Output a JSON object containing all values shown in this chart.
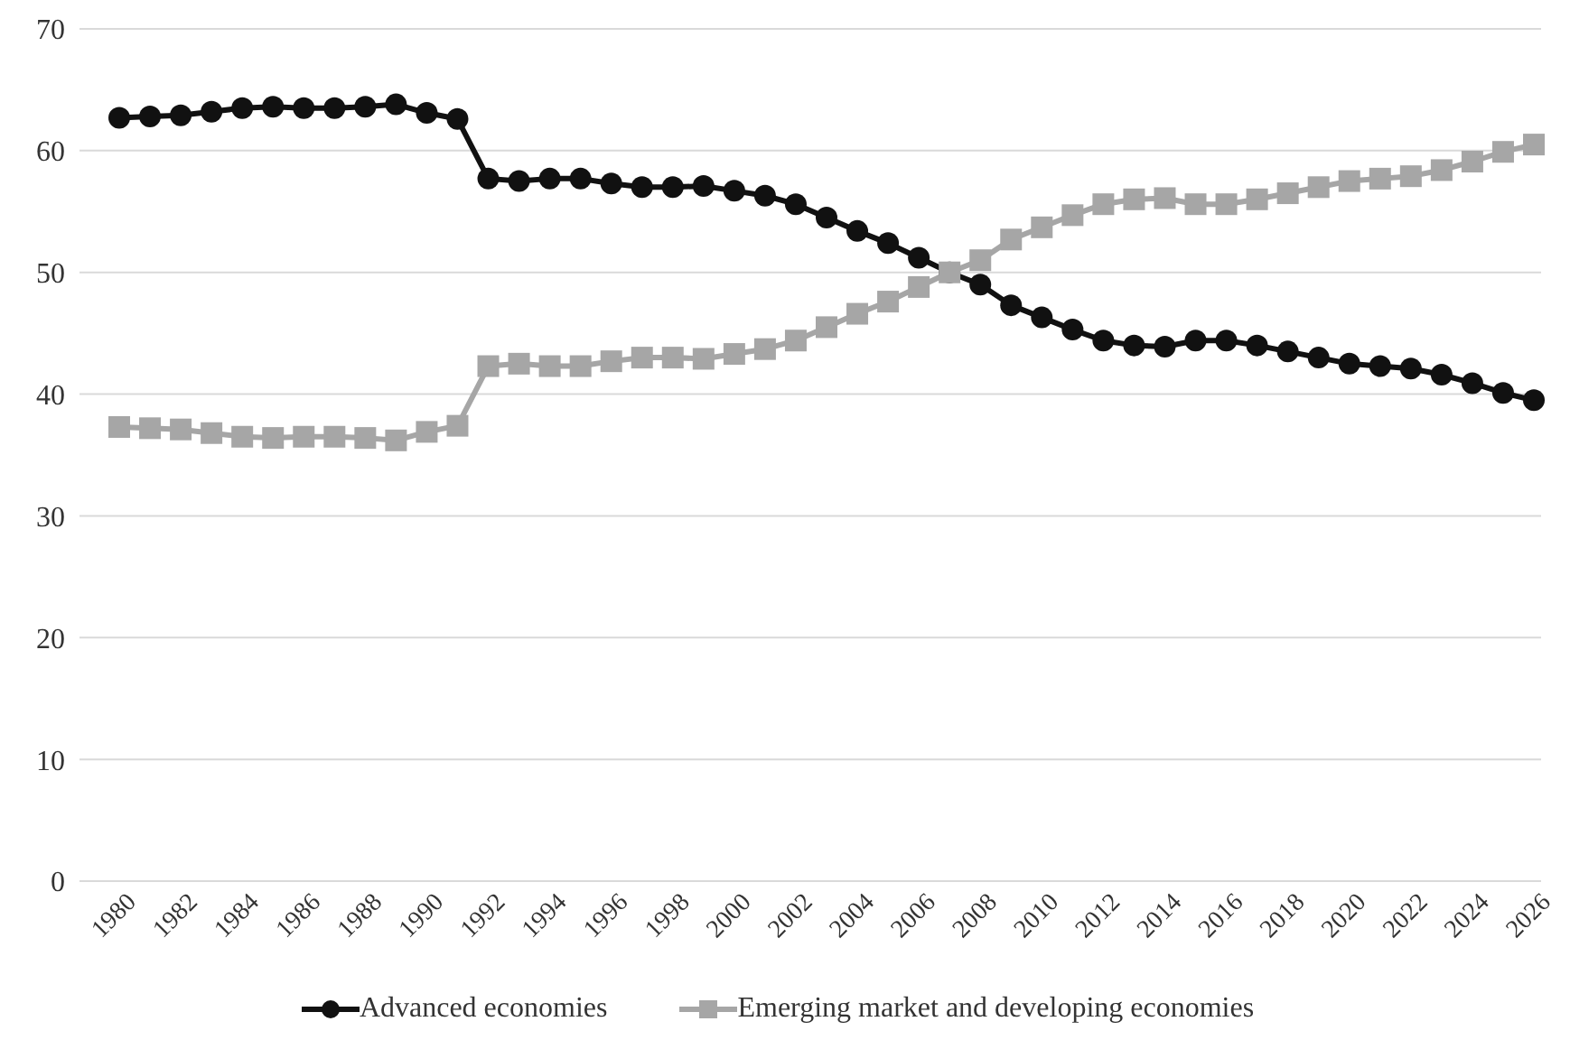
{
  "chart_data": {
    "type": "line",
    "categories": [
      "1980",
      null,
      "1982",
      null,
      "1984",
      null,
      "1986",
      null,
      "1988",
      null,
      "1990",
      null,
      "1992",
      null,
      "1994",
      null,
      "1996",
      null,
      "1998",
      null,
      "2000",
      null,
      "2002",
      null,
      "2004",
      null,
      "2006",
      null,
      "2008",
      null,
      "2010",
      null,
      "2012",
      null,
      "2014",
      null,
      "2016",
      null,
      "2018",
      null,
      "2020",
      null,
      "2022",
      null,
      "2024",
      null,
      "2026"
    ],
    "series": [
      {
        "name": "Advanced economies",
        "color": "#111111",
        "marker": "circle",
        "values": [
          62.7,
          62.8,
          62.9,
          63.2,
          63.5,
          63.6,
          63.5,
          63.5,
          63.6,
          63.8,
          63.1,
          62.6,
          57.7,
          57.5,
          57.7,
          57.7,
          57.3,
          57.0,
          57.0,
          57.1,
          56.7,
          56.3,
          55.6,
          54.5,
          53.4,
          52.4,
          51.2,
          50.0,
          49.0,
          47.3,
          46.3,
          45.3,
          44.4,
          44.0,
          43.9,
          44.4,
          44.4,
          44.0,
          43.5,
          43.0,
          42.5,
          42.3,
          42.1,
          41.6,
          40.9,
          40.1,
          39.5
        ]
      },
      {
        "name": "Emerging market and developing economies",
        "color": "#a6a6a6",
        "marker": "square",
        "values": [
          37.3,
          37.2,
          37.1,
          36.8,
          36.5,
          36.4,
          36.5,
          36.5,
          36.4,
          36.2,
          36.9,
          37.4,
          42.3,
          42.5,
          42.3,
          42.3,
          42.7,
          43.0,
          43.0,
          42.9,
          43.3,
          43.7,
          44.4,
          45.5,
          46.6,
          47.6,
          48.8,
          50.0,
          51.0,
          52.7,
          53.7,
          54.7,
          55.6,
          56.0,
          56.1,
          55.6,
          55.6,
          56.0,
          56.5,
          57.0,
          57.5,
          57.7,
          57.9,
          58.4,
          59.1,
          59.9,
          60.5
        ]
      }
    ],
    "ylim": [
      0,
      70
    ],
    "yticks": [
      0,
      10,
      20,
      30,
      40,
      50,
      60,
      70
    ],
    "grid": "y",
    "legend": "bottom",
    "line_style": "solid"
  }
}
